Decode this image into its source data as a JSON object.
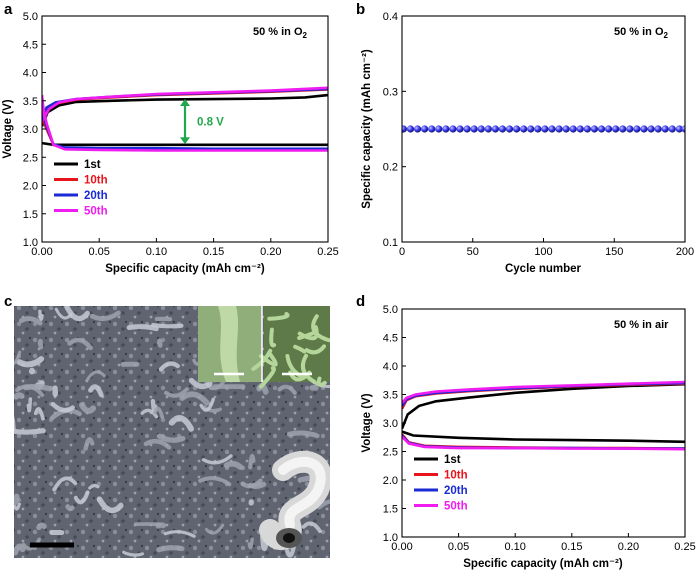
{
  "panels": {
    "a": "a",
    "b": "b",
    "c": "c",
    "d": "d"
  },
  "colors": {
    "first": "#000000",
    "tenth": "#e8141c",
    "twentieth": "#1a2bd6",
    "fiftieth": "#f01cf0",
    "arrow": "#22a84a",
    "marker": "#3a3af0"
  },
  "chart_data": [
    {
      "id": "a",
      "type": "line",
      "annotation": "50 % in O",
      "annotation_sub": "2",
      "xlabel": "Specific capacity (mAh cm⁻²)",
      "ylabel": "Voltage (V)",
      "xlim": [
        0,
        0.25
      ],
      "ylim": [
        1.0,
        5.0
      ],
      "xticks": [
        0.0,
        0.05,
        0.1,
        0.15,
        0.2,
        0.25
      ],
      "xtick_labels": [
        "0.00",
        "0.05",
        "0.10",
        "0.15",
        "0.20",
        "0.25"
      ],
      "yticks": [
        1.0,
        1.5,
        2.0,
        2.5,
        3.0,
        3.5,
        4.0,
        4.5,
        5.0
      ],
      "ytick_labels": [
        "1.0",
        "1.5",
        "2.0",
        "2.5",
        "3.0",
        "3.5",
        "4.0",
        "4.5",
        "5.0"
      ],
      "legend": [
        "1st",
        "10th",
        "20th",
        "50th"
      ],
      "arrow_label": "0.8 V",
      "arrow_x": 0.125,
      "arrow_y": [
        2.73,
        3.53
      ],
      "series": [
        {
          "name": "1st",
          "color_key": "first",
          "charge": [
            [
              0.0,
              3.05
            ],
            [
              0.005,
              3.3
            ],
            [
              0.015,
              3.42
            ],
            [
              0.03,
              3.48
            ],
            [
              0.06,
              3.5
            ],
            [
              0.1,
              3.52
            ],
            [
              0.15,
              3.53
            ],
            [
              0.2,
              3.54
            ],
            [
              0.23,
              3.56
            ],
            [
              0.25,
              3.6
            ]
          ],
          "discharge": [
            [
              0.0,
              2.75
            ],
            [
              0.01,
              2.72
            ],
            [
              0.05,
              2.72
            ],
            [
              0.1,
              2.72
            ],
            [
              0.15,
              2.72
            ],
            [
              0.2,
              2.72
            ],
            [
              0.25,
              2.72
            ]
          ]
        },
        {
          "name": "10th",
          "color_key": "tenth",
          "charge": [
            [
              0.0,
              3.1
            ],
            [
              0.004,
              3.35
            ],
            [
              0.012,
              3.45
            ],
            [
              0.03,
              3.52
            ],
            [
              0.06,
              3.56
            ],
            [
              0.1,
              3.6
            ],
            [
              0.15,
              3.63
            ],
            [
              0.2,
              3.66
            ],
            [
              0.25,
              3.7
            ]
          ],
          "discharge": [
            [
              0.0,
              3.2
            ],
            [
              0.004,
              3.0
            ],
            [
              0.01,
              2.72
            ],
            [
              0.02,
              2.66
            ],
            [
              0.05,
              2.65
            ],
            [
              0.1,
              2.65
            ],
            [
              0.15,
              2.64
            ],
            [
              0.2,
              2.64
            ],
            [
              0.25,
              2.64
            ]
          ]
        },
        {
          "name": "20th",
          "color_key": "twentieth",
          "charge": [
            [
              0.0,
              3.15
            ],
            [
              0.004,
              3.38
            ],
            [
              0.012,
              3.47
            ],
            [
              0.03,
              3.53
            ],
            [
              0.06,
              3.57
            ],
            [
              0.1,
              3.61
            ],
            [
              0.15,
              3.64
            ],
            [
              0.2,
              3.67
            ],
            [
              0.25,
              3.71
            ]
          ],
          "discharge": [
            [
              0.0,
              3.3
            ],
            [
              0.004,
              3.05
            ],
            [
              0.01,
              2.73
            ],
            [
              0.02,
              2.67
            ],
            [
              0.05,
              2.66
            ],
            [
              0.1,
              2.66
            ],
            [
              0.15,
              2.65
            ],
            [
              0.2,
              2.65
            ],
            [
              0.25,
              2.65
            ]
          ]
        },
        {
          "name": "50th",
          "color_key": "fiftieth",
          "charge": [
            [
              0.0,
              3.6
            ],
            [
              0.002,
              3.2
            ],
            [
              0.006,
              3.35
            ],
            [
              0.015,
              3.47
            ],
            [
              0.03,
              3.53
            ],
            [
              0.06,
              3.57
            ],
            [
              0.1,
              3.62
            ],
            [
              0.15,
              3.65
            ],
            [
              0.2,
              3.68
            ],
            [
              0.25,
              3.73
            ]
          ],
          "discharge": [
            [
              0.0,
              3.5
            ],
            [
              0.004,
              3.1
            ],
            [
              0.01,
              2.72
            ],
            [
              0.02,
              2.64
            ],
            [
              0.05,
              2.63
            ],
            [
              0.1,
              2.62
            ],
            [
              0.15,
              2.62
            ],
            [
              0.2,
              2.62
            ],
            [
              0.25,
              2.62
            ]
          ]
        }
      ]
    },
    {
      "id": "b",
      "type": "scatter",
      "annotation": "50 % in O",
      "annotation_sub": "2",
      "xlabel": "Cycle number",
      "ylabel": "Specific capacity (mAh cm⁻²)",
      "xlim": [
        0,
        200
      ],
      "ylim": [
        0.1,
        0.4
      ],
      "xticks": [
        0,
        50,
        100,
        150,
        200
      ],
      "xtick_labels": [
        "0",
        "50",
        "100",
        "150",
        "200"
      ],
      "yticks": [
        0.1,
        0.2,
        0.3,
        0.4
      ],
      "ytick_labels": [
        "0.1",
        "0.2",
        "0.3",
        "0.4"
      ],
      "series": [
        {
          "name": "capacity",
          "cycles_start": 1,
          "cycles_end": 200,
          "cycles_step": 5,
          "value": 0.25
        }
      ]
    },
    {
      "id": "d",
      "type": "line",
      "annotation": "50 % in air",
      "xlabel": "Specific capacity (mAh cm⁻²)",
      "ylabel": "Voltage (V)",
      "xlim": [
        0,
        0.25
      ],
      "ylim": [
        1.0,
        5.0
      ],
      "xticks": [
        0.0,
        0.05,
        0.1,
        0.15,
        0.2,
        0.25
      ],
      "xtick_labels": [
        "0.00",
        "0.05",
        "0.10",
        "0.15",
        "0.20",
        "0.25"
      ],
      "yticks": [
        1.0,
        1.5,
        2.0,
        2.5,
        3.0,
        3.5,
        4.0,
        4.5,
        5.0
      ],
      "ytick_labels": [
        "1.0",
        "1.5",
        "2.0",
        "2.5",
        "3.0",
        "3.5",
        "4.0",
        "4.5",
        "5.0"
      ],
      "legend": [
        "1st",
        "10th",
        "20th",
        "50th"
      ],
      "series": [
        {
          "name": "1st",
          "color_key": "first",
          "charge": [
            [
              0.0,
              2.9
            ],
            [
              0.005,
              3.15
            ],
            [
              0.015,
              3.3
            ],
            [
              0.03,
              3.38
            ],
            [
              0.06,
              3.45
            ],
            [
              0.1,
              3.53
            ],
            [
              0.15,
              3.6
            ],
            [
              0.2,
              3.65
            ],
            [
              0.25,
              3.68
            ]
          ],
          "discharge": [
            [
              0.0,
              2.85
            ],
            [
              0.01,
              2.78
            ],
            [
              0.05,
              2.74
            ],
            [
              0.1,
              2.71
            ],
            [
              0.15,
              2.7
            ],
            [
              0.2,
              2.69
            ],
            [
              0.25,
              2.67
            ]
          ]
        },
        {
          "name": "10th",
          "color_key": "tenth",
          "charge": [
            [
              0.0,
              3.25
            ],
            [
              0.004,
              3.4
            ],
            [
              0.012,
              3.47
            ],
            [
              0.03,
              3.52
            ],
            [
              0.06,
              3.56
            ],
            [
              0.1,
              3.6
            ],
            [
              0.15,
              3.64
            ],
            [
              0.2,
              3.67
            ],
            [
              0.25,
              3.69
            ]
          ],
          "discharge": [
            [
              0.0,
              2.8
            ],
            [
              0.006,
              2.66
            ],
            [
              0.02,
              2.6
            ],
            [
              0.05,
              2.58
            ],
            [
              0.1,
              2.57
            ],
            [
              0.15,
              2.56
            ],
            [
              0.2,
              2.56
            ],
            [
              0.25,
              2.55
            ]
          ]
        },
        {
          "name": "20th",
          "color_key": "twentieth",
          "charge": [
            [
              0.0,
              3.3
            ],
            [
              0.004,
              3.42
            ],
            [
              0.012,
              3.48
            ],
            [
              0.03,
              3.53
            ],
            [
              0.06,
              3.57
            ],
            [
              0.1,
              3.61
            ],
            [
              0.15,
              3.65
            ],
            [
              0.2,
              3.68
            ],
            [
              0.25,
              3.7
            ]
          ],
          "discharge": [
            [
              0.0,
              2.78
            ],
            [
              0.006,
              2.65
            ],
            [
              0.02,
              2.59
            ],
            [
              0.05,
              2.57
            ],
            [
              0.1,
              2.56
            ],
            [
              0.15,
              2.56
            ],
            [
              0.2,
              2.55
            ],
            [
              0.25,
              2.55
            ]
          ]
        },
        {
          "name": "50th",
          "color_key": "fiftieth",
          "charge": [
            [
              0.0,
              3.35
            ],
            [
              0.004,
              3.44
            ],
            [
              0.012,
              3.5
            ],
            [
              0.03,
              3.55
            ],
            [
              0.06,
              3.59
            ],
            [
              0.1,
              3.63
            ],
            [
              0.15,
              3.66
            ],
            [
              0.2,
              3.69
            ],
            [
              0.25,
              3.72
            ]
          ],
          "discharge": [
            [
              0.0,
              2.76
            ],
            [
              0.006,
              2.64
            ],
            [
              0.02,
              2.58
            ],
            [
              0.05,
              2.56
            ],
            [
              0.1,
              2.56
            ],
            [
              0.15,
              2.55
            ],
            [
              0.2,
              2.55
            ],
            [
              0.25,
              2.54
            ]
          ]
        }
      ]
    }
  ]
}
